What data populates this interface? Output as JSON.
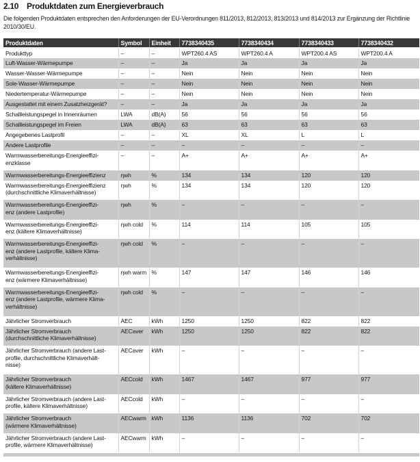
{
  "document": {
    "section_number": "2.10",
    "section_title": "Produktdaten zum Energieverbrauch",
    "intro": "Die folgenden Produktdaten entsprechen den Anforderungen der EU-Verordnungen 811/2013, 812/2013, 813/2013 und 814/2013 zur Ergänzung der Richtlinie 2010/30/EU."
  },
  "colors": {
    "header_bg": "#383838",
    "header_text": "#ffffff",
    "stripe_bg": "#c8c8c8",
    "body_text": "#161616"
  },
  "table": {
    "columns": [
      "Produktdaten",
      "Symbol",
      "Einheit",
      "7738340435",
      "7738340434",
      "7738340433",
      "7738340432"
    ],
    "rows": [
      {
        "label": "Produkttyp",
        "symbol": "–",
        "unit": "–",
        "values": [
          "WPT260.4 AS",
          "WPT260.4 A",
          "WPT200.4 AS",
          "WPT200.4 A"
        ]
      },
      {
        "label": "Luft-Wasser-Wärmepumpe",
        "symbol": "–",
        "unit": "–",
        "values": [
          "Ja",
          "Ja",
          "Ja",
          "Ja"
        ]
      },
      {
        "label": "Wasser-Wasser-Wärmepumpe",
        "symbol": "–",
        "unit": "–",
        "values": [
          "Nein",
          "Nein",
          "Nein",
          "Nein"
        ]
      },
      {
        "label": "Sole-Wasser-Wärmepumpe",
        "symbol": "–",
        "unit": "–",
        "values": [
          "Nein",
          "Nein",
          "Nein",
          "Nein"
        ]
      },
      {
        "label": "Niedertemperatur-Wärmepumpe",
        "symbol": "–",
        "unit": "–",
        "values": [
          "Nein",
          "Nein",
          "Nein",
          "Nein"
        ]
      },
      {
        "label": "Ausgestattet mit einem Zusatzheizgerät?",
        "symbol": "–",
        "unit": "–",
        "values": [
          "Ja",
          "Ja",
          "Ja",
          "Ja"
        ]
      },
      {
        "label": "Schallleistungspegel in Innenräumen",
        "symbol": "LWA",
        "unit": "dB(A)",
        "values": [
          "56",
          "56",
          "56",
          "56"
        ]
      },
      {
        "label": "Schallleistungspegel im Freien",
        "symbol": "LWA",
        "unit": "dB(A)",
        "values": [
          "63",
          "63",
          "63",
          "63"
        ]
      },
      {
        "label": "Angegebenes Lastprofil",
        "symbol": "–",
        "unit": "–",
        "values": [
          "XL",
          "XL",
          "L",
          "L"
        ]
      },
      {
        "label": "Andere Lastprofile",
        "symbol": "–",
        "unit": "–",
        "values": [
          "–",
          "–",
          "–",
          "–"
        ]
      },
      {
        "label": "Warmwasserbereitungs-Energieeffizi-\nenzklasse",
        "symbol": "–",
        "unit": "–",
        "values": [
          "A+",
          "A+",
          "A+",
          "A+"
        ]
      },
      {
        "label": "Warmwasserbereitungs-Energieeffizienz",
        "symbol": "ηwh",
        "unit": "%",
        "values": [
          "134",
          "134",
          "120",
          "120"
        ]
      },
      {
        "label": "Warmwasserbereitungs-Energieeffizienz\n(durchschnittliche Klimaverhältnisse)",
        "symbol": "ηwh",
        "unit": "%",
        "values": [
          "134",
          "134",
          "120",
          "120"
        ]
      },
      {
        "label": "Warmwasserbereitungs-Energieeffizi-\nenz (andere Lastprofile)",
        "symbol": "ηwh",
        "unit": "%",
        "values": [
          "–",
          "–",
          "–",
          "–"
        ]
      },
      {
        "label": "Warmwasserbereitungs-Energieeffizi-\nenz (kältere Klimaverhältnisse)",
        "symbol": "ηwh cold",
        "unit": "%",
        "values": [
          "114",
          "114",
          "105",
          "105"
        ]
      },
      {
        "label": "Warmwasserbereitungs-Energieeffizi-\nenz (andere Lastprofile, kältere Klima-\nverhältnisse)",
        "symbol": "ηwh cold",
        "unit": "%",
        "values": [
          "–",
          "–",
          "–",
          "–"
        ]
      },
      {
        "label": "Warmwasserbereitungs-Energieeffizi-\nenz (wärmere Klimaverhältnisse)",
        "symbol": "ηwh warm",
        "unit": "%",
        "values": [
          "147",
          "147",
          "146",
          "146"
        ]
      },
      {
        "label": "Warmwasserbereitungs-Energieeffizi-\nenz (andere Lastprofile, wärmere Klima-\nverhältnisse)",
        "symbol": "ηwh cold",
        "unit": "%",
        "values": [
          "–",
          "–",
          "–",
          "–"
        ]
      },
      {
        "label": "Jährlicher Stromverbrauch",
        "symbol": "AEC",
        "unit": "kWh",
        "values": [
          "1250",
          "1250",
          "822",
          "822"
        ]
      },
      {
        "label": "Jährlicher Stromverbrauch\n(durchschnittliche Klimaverhältnisse)",
        "symbol": "AECaver",
        "unit": "kWh",
        "values": [
          "1250",
          "1250",
          "822",
          "822"
        ]
      },
      {
        "label": "Jährlicher Stromverbrauch (andere Last-\nprofile, durchschnittliche Klimaverhält-\nnisse)",
        "symbol": "AECaver",
        "unit": "kWh",
        "values": [
          "–",
          "–",
          "–",
          "–"
        ]
      },
      {
        "label": "Jährlicher Stromverbrauch\n(kältere Klimaverhältnisse)",
        "symbol": "AECcold",
        "unit": "kWh",
        "values": [
          "1467",
          "1467",
          "977",
          "977"
        ]
      },
      {
        "label": "Jährlicher Stromverbrauch (andere Last-\nprofile, kältere Klimaverhältnisse)",
        "symbol": "AECcold",
        "unit": "kWh",
        "values": [
          "–",
          "–",
          "–",
          "–"
        ]
      },
      {
        "label": "Jährlicher Stromverbrauch\n(wärmere Klimaverhältnisse)",
        "symbol": "AECwarm",
        "unit": "kWh",
        "values": [
          "1136",
          "1136",
          "702",
          "702"
        ]
      },
      {
        "label": "Jährlicher Stromverbrauch (andere Last-\nprofile, wärmere Klimaverhältnisse)",
        "symbol": "AECwarm",
        "unit": "kWh",
        "values": [
          "–",
          "–",
          "–",
          "–"
        ]
      }
    ]
  }
}
